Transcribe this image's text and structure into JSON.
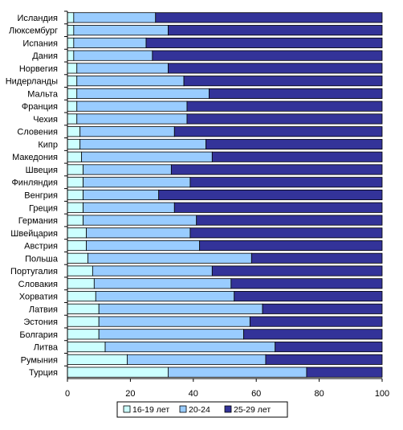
{
  "chart_data": {
    "type": "bar",
    "orientation": "horizontal",
    "stacked": true,
    "categories": [
      "Исландия",
      "Люксембург",
      "Испания",
      "Дания",
      "Норвегия",
      "Нидерланды",
      "Мальта",
      "Франция",
      "Чехия",
      "Словения",
      "Кипр",
      "Македония",
      "Швеция",
      "Финляндия",
      "Венгрия",
      "Греция",
      "Германия",
      "Швейцария",
      "Австрия",
      "Польша",
      "Португалия",
      "Словакия",
      "Хорватия",
      "Латвия",
      "Эстония",
      "Болгария",
      "Литва",
      "Румыния",
      "Турция"
    ],
    "series": [
      {
        "name": "16-19 лет",
        "color": "#ccffff",
        "values": [
          2,
          2,
          2,
          2,
          3,
          3,
          3,
          3,
          3,
          4,
          4,
          4.5,
          5,
          5,
          5,
          5,
          5,
          6,
          6,
          6.5,
          8,
          8.5,
          9,
          10,
          10,
          10,
          12,
          19,
          32
        ]
      },
      {
        "name": "20-24",
        "color": "#99ccff",
        "values": [
          26,
          30,
          23,
          25,
          29,
          34,
          42,
          35,
          35,
          30,
          40,
          41.5,
          28,
          34,
          24,
          29,
          36,
          33,
          36,
          52,
          38,
          43.5,
          44,
          52,
          48,
          46,
          54,
          44,
          44
        ]
      },
      {
        "name": "25-29 лет",
        "color": "#333399",
        "values": [
          72,
          68,
          75,
          73,
          68,
          63,
          55,
          62,
          62,
          66,
          56,
          54,
          67,
          61,
          71,
          66,
          59,
          61,
          58,
          41.5,
          54,
          48,
          47,
          38,
          42,
          44,
          34,
          37,
          24
        ]
      }
    ],
    "xlim": [
      0,
      100
    ],
    "xticks": [
      "0",
      "20",
      "40",
      "60",
      "80",
      "100"
    ],
    "legend_position": "bottom",
    "grid": false
  }
}
